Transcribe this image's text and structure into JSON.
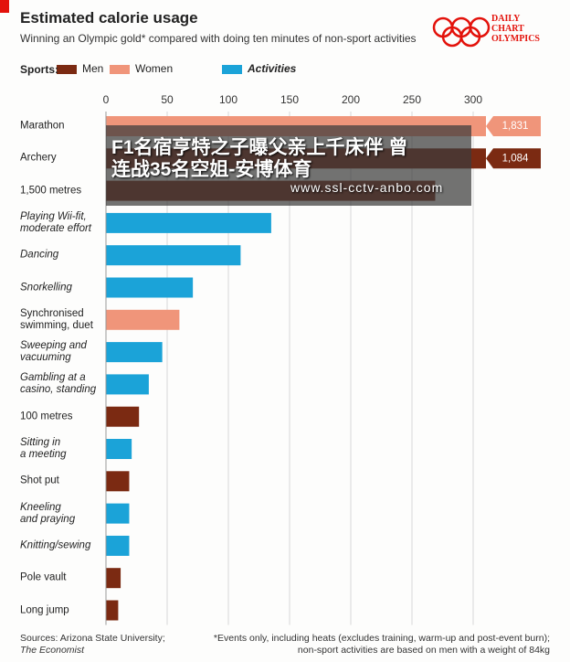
{
  "chart_data": {
    "type": "bar",
    "orientation": "horizontal",
    "title": "Estimated calorie usage",
    "subtitle": "Winning an Olympic gold* compared with doing ten minutes of non-sport activities",
    "legend_label": "Sports:",
    "logo": "DAILY\nCHART\nOLYMPICS",
    "categories": [
      "Marathon",
      "Archery",
      "1,500 metres",
      "Playing Wii-fit,\nmoderate effort",
      "Dancing",
      "Snorkelling",
      "Synchronised\nswimming, duet",
      "Sweeping and\nvacuuming",
      "Gambling at a\ncasino, standing",
      "100 metres",
      "Sitting in\na meeting",
      "Shot put",
      "Kneeling\nand praying",
      "Knitting/sewing",
      "Pole vault",
      "Long jump"
    ],
    "series": [
      {
        "name": "Men",
        "color": "#7b2a12",
        "values": [
          null,
          1084,
          269,
          null,
          null,
          null,
          null,
          null,
          null,
          27,
          null,
          19,
          null,
          null,
          12,
          10
        ],
        "value_labels": [
          null,
          "1,084",
          null,
          null,
          null,
          null,
          null,
          null,
          null,
          null,
          null,
          null,
          null,
          null,
          null,
          null
        ]
      },
      {
        "name": "Women",
        "color": "#f0957a",
        "values": [
          1831,
          null,
          null,
          null,
          null,
          null,
          60,
          null,
          null,
          null,
          null,
          null,
          null,
          null,
          null,
          null
        ],
        "value_labels": [
          "1,831",
          null,
          null,
          null,
          null,
          null,
          null,
          null,
          null,
          null,
          null,
          null,
          null,
          null,
          null,
          null
        ]
      },
      {
        "name": "Activities",
        "color": "#1ba3d8",
        "values": [
          null,
          null,
          null,
          135,
          110,
          71,
          null,
          46,
          35,
          null,
          21,
          null,
          19,
          19,
          null,
          null
        ]
      }
    ],
    "xlim": [
      0,
      300
    ],
    "xticks": [
      0,
      50,
      100,
      150,
      200,
      250,
      300
    ],
    "grid": true,
    "source": "Sources: Arizona State University;",
    "source_publication": "The Economist",
    "footnote": "*Events only, including heats (excludes training, warm-up and post-event burn);\nnon-sport activities are based on men with a weight of 84kg",
    "watermark": "F1名宿亨特之子曝父亲上千床伴 曾\n连战35名空姐-安博体育",
    "watermark_url": "www.ssl-cctv-anbo.com"
  }
}
